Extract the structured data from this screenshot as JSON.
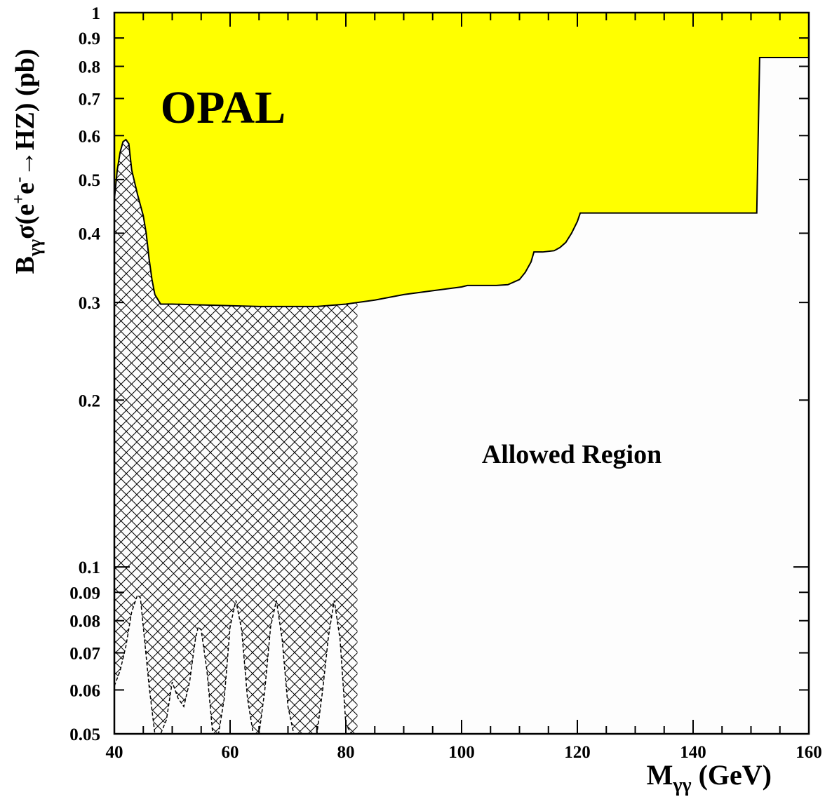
{
  "chart_data": {
    "type": "area",
    "title": "",
    "experiment_label": "OPAL",
    "region_label": "Allowed Region",
    "xlabel": {
      "main": "M",
      "sub": "γγ",
      "rest": " (GeV)"
    },
    "ylabel": {
      "b": "B",
      "b_sub": "γγ",
      "sigma": "σ(e",
      "plus": "+",
      "e2": "e",
      "minus": "-",
      "rest": "→HZ) (pb)"
    },
    "x_range": [
      40,
      160
    ],
    "y_range": [
      0.05,
      1
    ],
    "y_scale": "log",
    "grid": false,
    "x_ticks": [
      40,
      60,
      80,
      100,
      120,
      140,
      160
    ],
    "x_tick_labels": [
      "40",
      "60",
      "80",
      "100",
      "120",
      "140",
      "160"
    ],
    "y_ticks": [
      0.05,
      0.06,
      0.07,
      0.08,
      0.09,
      0.1,
      0.2,
      0.3,
      0.4,
      0.5,
      0.6,
      0.7,
      0.8,
      0.9,
      1
    ],
    "y_tick_labels": [
      "0.05",
      "0.06",
      "0.07",
      "0.08",
      "0.09",
      "0.1",
      "0.2",
      "0.3",
      "0.4",
      "0.5",
      "0.6",
      "0.7",
      "0.8",
      "0.9",
      "1"
    ],
    "colors": {
      "excluded_fill": "#ffff00",
      "allowed_fill": "#fdfdfd",
      "hatch": "#000000",
      "line": "#000000"
    },
    "series": [
      {
        "role": "observed_limit",
        "fill": "excluded above",
        "x": [
          40,
          40.5,
          41,
          41.5,
          42,
          42.5,
          43,
          44,
          45,
          45.5,
          46,
          46.5,
          47,
          48,
          50,
          55,
          60,
          65,
          70,
          75,
          80,
          85,
          90,
          95,
          100,
          101,
          106,
          108,
          110,
          111,
          112,
          112.5,
          114,
          116,
          117,
          118,
          119,
          120,
          120.5,
          130,
          140,
          150,
          151,
          151.5,
          155,
          160
        ],
        "y": [
          0.46,
          0.52,
          0.56,
          0.585,
          0.59,
          0.58,
          0.52,
          0.47,
          0.43,
          0.4,
          0.36,
          0.33,
          0.31,
          0.298,
          0.298,
          0.297,
          0.296,
          0.295,
          0.295,
          0.295,
          0.298,
          0.303,
          0.31,
          0.315,
          0.32,
          0.322,
          0.322,
          0.323,
          0.33,
          0.34,
          0.355,
          0.37,
          0.37,
          0.372,
          0.377,
          0.385,
          0.4,
          0.42,
          0.435,
          0.435,
          0.435,
          0.435,
          0.435,
          0.83,
          0.83,
          0.83
        ]
      },
      {
        "role": "expected_dashed",
        "style": "dashed",
        "x": [
          40,
          41,
          42,
          43,
          44,
          44.5,
          45,
          46,
          47,
          48,
          49,
          50,
          51,
          52,
          53,
          54,
          54.5,
          55,
          56,
          57,
          58,
          59,
          60,
          61,
          62,
          63,
          64,
          65,
          66,
          67,
          68,
          69,
          70,
          71,
          72,
          73,
          74,
          75,
          76,
          77,
          78,
          79,
          80,
          81
        ],
        "y": [
          0.061,
          0.065,
          0.072,
          0.083,
          0.089,
          0.088,
          0.078,
          0.061,
          0.05,
          0.05,
          0.053,
          0.062,
          0.058,
          0.056,
          0.062,
          0.074,
          0.078,
          0.077,
          0.065,
          0.05,
          0.05,
          0.058,
          0.078,
          0.087,
          0.077,
          0.058,
          0.05,
          0.05,
          0.06,
          0.078,
          0.087,
          0.074,
          0.056,
          0.05,
          0.05,
          0.05,
          0.05,
          0.05,
          0.06,
          0.075,
          0.087,
          0.074,
          0.052,
          0.05
        ]
      }
    ],
    "hatched_region": {
      "x": [
        40,
        82
      ],
      "description_ref": "area below observed limit"
    }
  }
}
